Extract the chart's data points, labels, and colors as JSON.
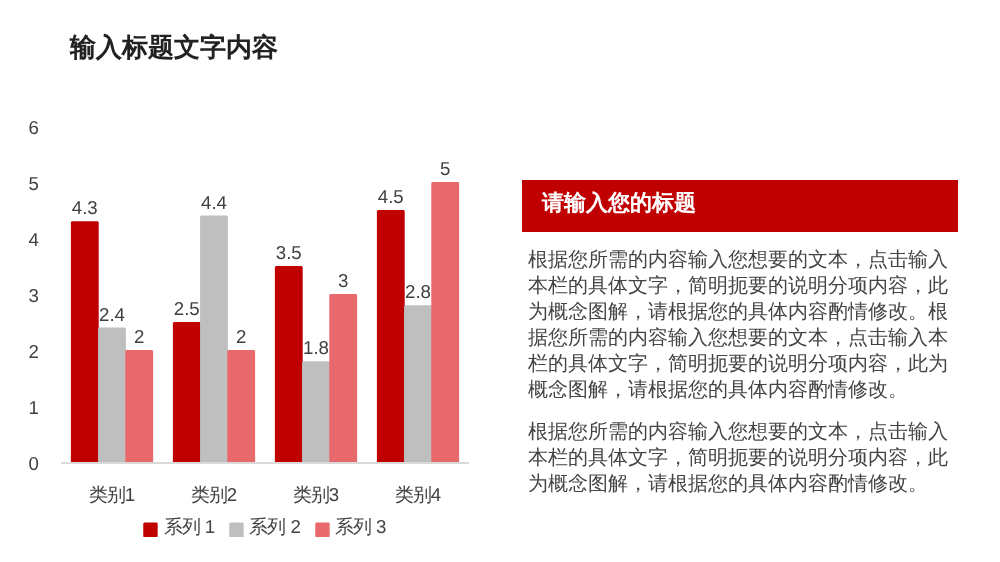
{
  "chart_data": {
    "type": "bar",
    "title": "输入标题文字内容",
    "subtitle": "请输入您的标题",
    "annotations": [
      "根据您所需的内容输入您想要的文本，点击输入本栏的具体文字，简明扼要的说明分项内容，此为概念图解，请根据您的具体内容酌情修改。根据您所需的内容输入您想要的文本，点击输入本栏的具体文字，简明扼要的说明分项内容，此为概念图解，请根据您的具体内容酌情修改。",
      "根据您所需的内容输入您想要的文本，点击输入本栏的具体文字，简明扼要的说明分项内容，此为概念图解，请根据您的具体内容酌情修改。"
    ],
    "categories": [
      "类别1",
      "类别2",
      "类别3",
      "类别4"
    ],
    "series": [
      {
        "name": "系列 1",
        "color": "#c00000",
        "values": [
          4.3,
          2.5,
          3.5,
          4.5
        ]
      },
      {
        "name": "系列 2",
        "color": "#bfbfbf",
        "values": [
          2.4,
          4.4,
          1.8,
          2.8
        ]
      },
      {
        "name": "系列 3",
        "color": "#e8696b",
        "values": [
          2,
          2,
          3,
          5
        ]
      }
    ],
    "ylim": [
      0,
      6
    ],
    "yticks": [
      0,
      1,
      2,
      3,
      4,
      5,
      6
    ],
    "grid": false,
    "legend": "bottom",
    "data_labels": true
  }
}
